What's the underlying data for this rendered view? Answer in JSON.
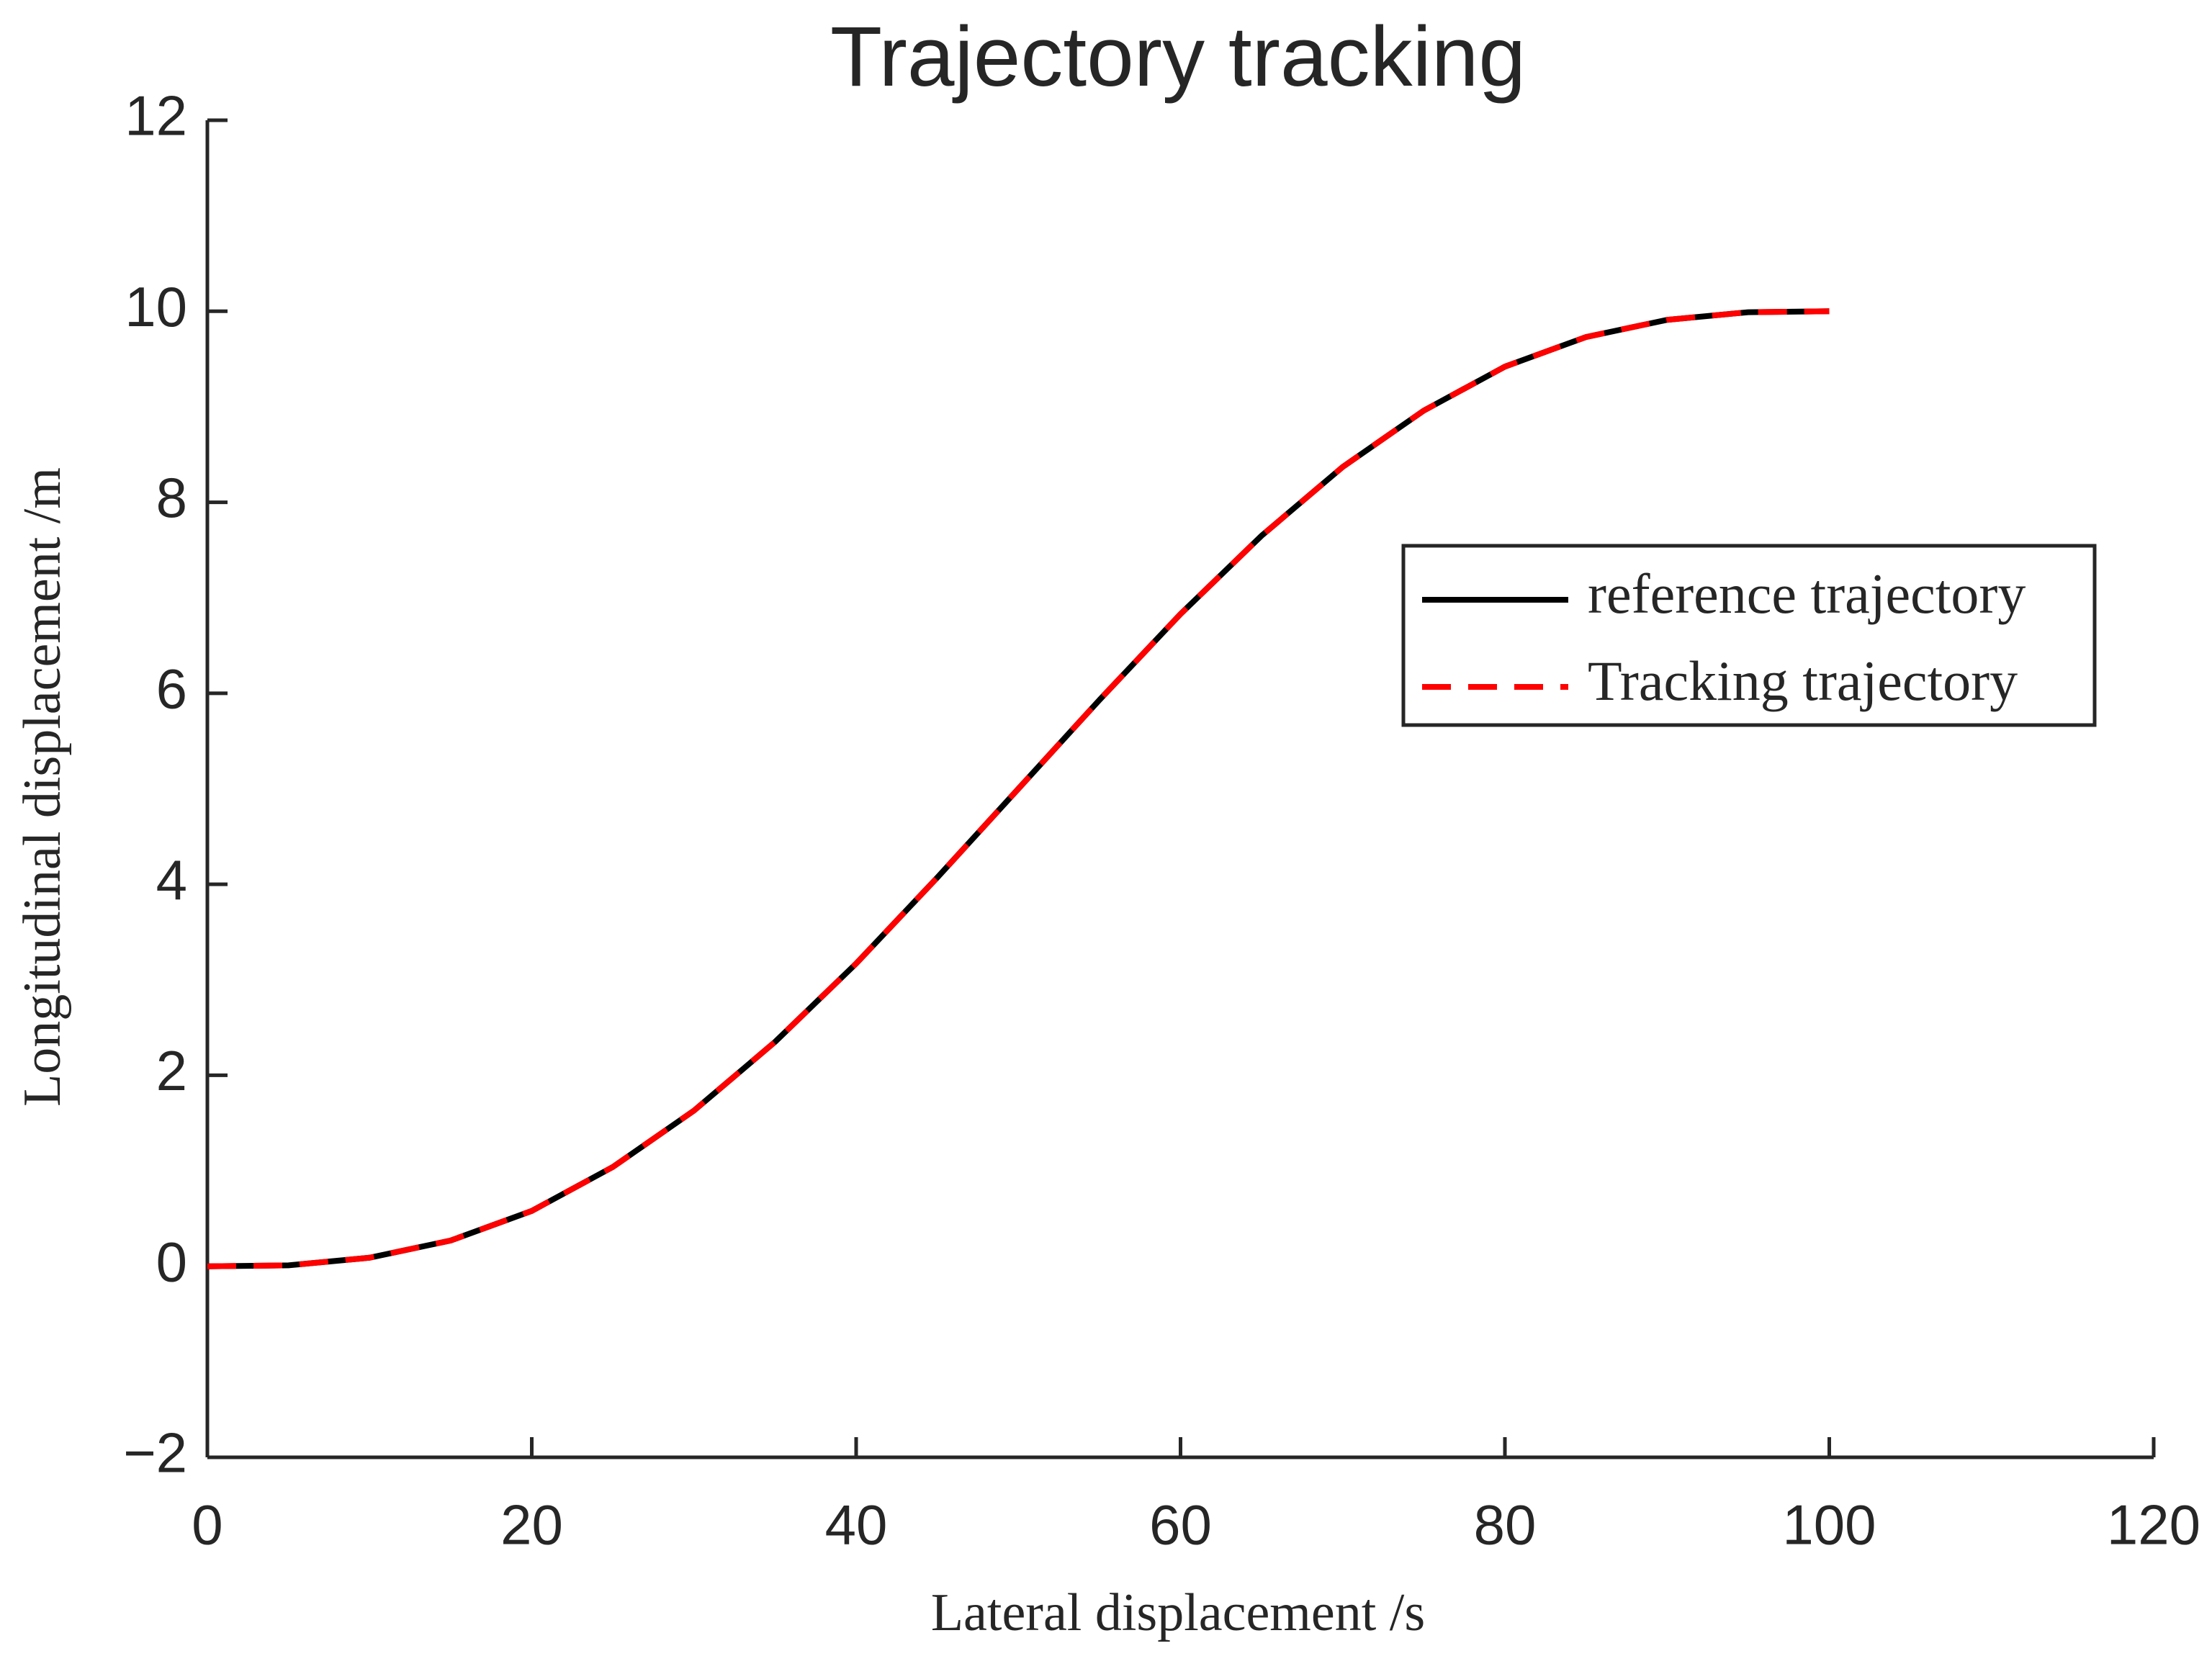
{
  "chart_data": {
    "type": "line",
    "title": "Trajectory tracking",
    "x_label": "Lateral displacement /s",
    "y_label": "Longitudinal displacement /m",
    "x": [
      0,
      5,
      10,
      15,
      20,
      25,
      30,
      35,
      40,
      45,
      50,
      55,
      60,
      65,
      70,
      75,
      80,
      85,
      90,
      95,
      100
    ],
    "series": [
      {
        "name": "reference trajectory",
        "color": "#000000",
        "dashed": false,
        "values": [
          0,
          0.01,
          0.09,
          0.27,
          0.58,
          1.04,
          1.63,
          2.35,
          3.17,
          4.07,
          5.0,
          5.93,
          6.83,
          7.65,
          8.37,
          8.96,
          9.42,
          9.73,
          9.91,
          9.99,
          10
        ]
      },
      {
        "name": "Tracking trajectory",
        "color": "#ff0000",
        "dashed": true,
        "values": [
          0,
          0.01,
          0.09,
          0.27,
          0.58,
          1.04,
          1.63,
          2.35,
          3.17,
          4.07,
          5.0,
          5.93,
          6.83,
          7.65,
          8.37,
          8.96,
          9.42,
          9.73,
          9.91,
          9.99,
          10
        ]
      }
    ],
    "xlim": [
      0,
      120
    ],
    "xticks": [
      0,
      20,
      40,
      60,
      80,
      100,
      120
    ],
    "ylim": [
      -2,
      12
    ],
    "yticks": [
      {
        "value": -2,
        "label": "−2"
      },
      0,
      2,
      4,
      6,
      8,
      10,
      12
    ],
    "grid": false,
    "legend": "east"
  }
}
